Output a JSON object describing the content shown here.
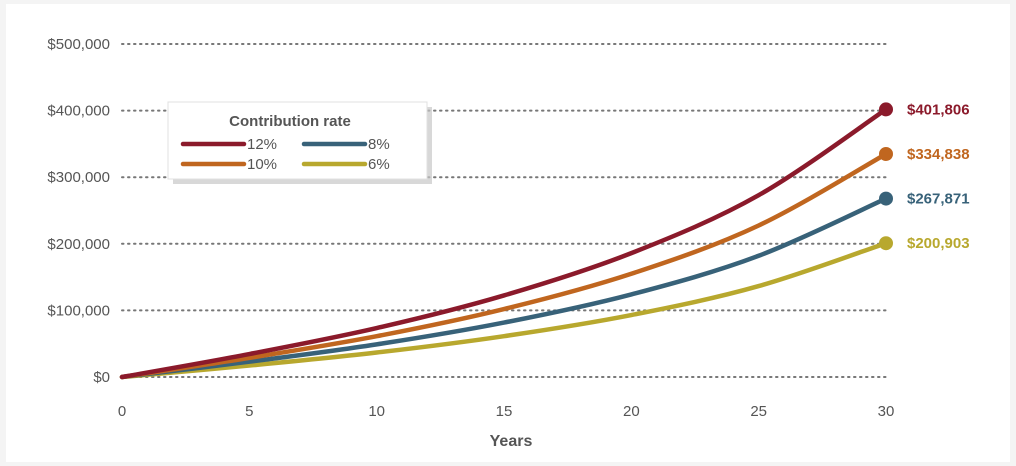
{
  "chart_data": {
    "type": "line",
    "xlabel": "Years",
    "ylabel": "",
    "xlim": [
      0,
      30
    ],
    "ylim": [
      0,
      500000
    ],
    "x_ticks": [
      0,
      5,
      10,
      15,
      20,
      25,
      30
    ],
    "y_ticks": [
      0,
      100000,
      200000,
      300000,
      400000,
      500000
    ],
    "y_tick_labels": [
      "$0",
      "$100,000",
      "$200,000",
      "$300,000",
      "$400,000",
      "$500,000"
    ],
    "grid": "horizontal dotted",
    "legend": {
      "title": "Contribution rate",
      "placement": "top-left"
    },
    "series": [
      {
        "name": "12%",
        "color": "#8b1a2b",
        "x": [
          0,
          5,
          10,
          15,
          20,
          25,
          30
        ],
        "values": [
          0,
          34500,
          73500,
          122500,
          186000,
          273000,
          401806
        ],
        "end_label": "$401,806"
      },
      {
        "name": "10%",
        "color": "#c0661f",
        "x": [
          0,
          5,
          10,
          15,
          20,
          25,
          30
        ],
        "values": [
          0,
          28750,
          61250,
          102000,
          155000,
          227500,
          334838
        ],
        "end_label": "$334,838"
      },
      {
        "name": "8%",
        "color": "#386279",
        "x": [
          0,
          5,
          10,
          15,
          20,
          25,
          30
        ],
        "values": [
          0,
          23000,
          49000,
          81700,
          124000,
          182000,
          267871
        ],
        "end_label": "$267,871"
      },
      {
        "name": "6%",
        "color": "#b8a82e",
        "x": [
          0,
          5,
          10,
          15,
          20,
          25,
          30
        ],
        "values": [
          0,
          17250,
          36750,
          61300,
          93000,
          136500,
          200903
        ],
        "end_label": "$200,903"
      }
    ]
  }
}
